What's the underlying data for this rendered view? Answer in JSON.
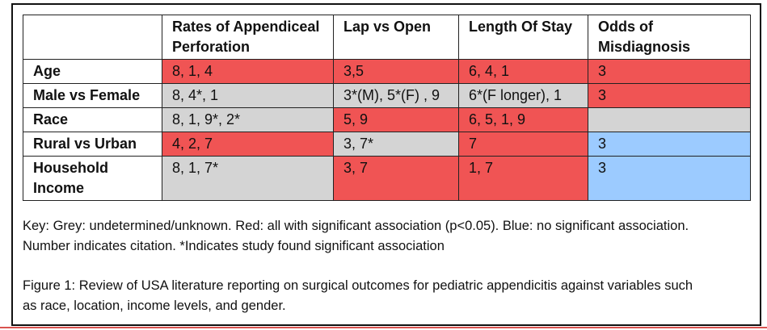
{
  "table": {
    "headers": [
      "",
      "Rates of Appendiceal Perforation",
      "Lap vs Open",
      "Length Of Stay",
      "Odds of Misdiagnosis"
    ],
    "rows": [
      {
        "label": "Age",
        "cells": [
          "8, 1, 4",
          "3,5",
          "6, 4, 1",
          "3"
        ],
        "colors": [
          "red",
          "red",
          "red",
          "red"
        ]
      },
      {
        "label": "Male vs Female",
        "cells": [
          "8, 4*, 1",
          "3*(M), 5*(F) , 9",
          "6*(F longer), 1",
          "3"
        ],
        "colors": [
          "grey",
          "grey",
          "grey",
          "red"
        ]
      },
      {
        "label": "Race",
        "cells": [
          "8, 1, 9*, 2*",
          "5, 9",
          "6, 5, 1, 9",
          ""
        ],
        "colors": [
          "grey",
          "red",
          "red",
          "grey"
        ]
      },
      {
        "label": "Rural vs Urban",
        "cells": [
          "4, 2, 7",
          "3, 7*",
          "7",
          "3"
        ],
        "colors": [
          "red",
          "grey",
          "red",
          "blue"
        ]
      },
      {
        "label": "Household Income",
        "cells": [
          "8, 1, 7*",
          "3, 7",
          "1, 7",
          "3"
        ],
        "colors": [
          "grey",
          "red",
          "red",
          "blue"
        ]
      }
    ]
  },
  "colors": {
    "red": "#f05454",
    "grey": "#d4d4d4",
    "blue": "#9ccbff"
  },
  "key": {
    "line1": "Key:  Grey: undetermined/unknown.  Red: all with significant association (p<0.05).  Blue: no significant association.",
    "line2": "Number indicates citation.   *Indicates study found significant association"
  },
  "caption": {
    "line1": "Figure 1: Review of USA literature reporting on surgical outcomes for pediatric appendicitis against variables such",
    "line2": "as race, location, income levels, and gender."
  }
}
